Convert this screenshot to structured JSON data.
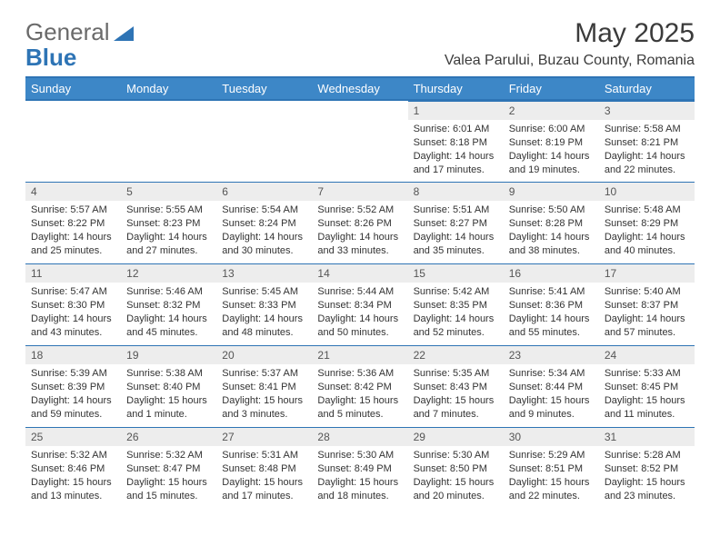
{
  "brand": {
    "part1": "General",
    "part2": "Blue"
  },
  "title": {
    "month": "May 2025",
    "location": "Valea Parului, Buzau County, Romania"
  },
  "colors": {
    "header_bg": "#3d87c7",
    "rule": "#2e74b5",
    "daynum_bg": "#ededed",
    "text": "#333333"
  },
  "weekdays": [
    "Sunday",
    "Monday",
    "Tuesday",
    "Wednesday",
    "Thursday",
    "Friday",
    "Saturday"
  ],
  "layout": {
    "first_weekday_index": 4,
    "days_in_month": 31
  },
  "days": {
    "1": {
      "sunrise": "6:01 AM",
      "sunset": "8:18 PM",
      "day_h": 14,
      "day_m": 17
    },
    "2": {
      "sunrise": "6:00 AM",
      "sunset": "8:19 PM",
      "day_h": 14,
      "day_m": 19
    },
    "3": {
      "sunrise": "5:58 AM",
      "sunset": "8:21 PM",
      "day_h": 14,
      "day_m": 22
    },
    "4": {
      "sunrise": "5:57 AM",
      "sunset": "8:22 PM",
      "day_h": 14,
      "day_m": 25
    },
    "5": {
      "sunrise": "5:55 AM",
      "sunset": "8:23 PM",
      "day_h": 14,
      "day_m": 27
    },
    "6": {
      "sunrise": "5:54 AM",
      "sunset": "8:24 PM",
      "day_h": 14,
      "day_m": 30
    },
    "7": {
      "sunrise": "5:52 AM",
      "sunset": "8:26 PM",
      "day_h": 14,
      "day_m": 33
    },
    "8": {
      "sunrise": "5:51 AM",
      "sunset": "8:27 PM",
      "day_h": 14,
      "day_m": 35
    },
    "9": {
      "sunrise": "5:50 AM",
      "sunset": "8:28 PM",
      "day_h": 14,
      "day_m": 38
    },
    "10": {
      "sunrise": "5:48 AM",
      "sunset": "8:29 PM",
      "day_h": 14,
      "day_m": 40
    },
    "11": {
      "sunrise": "5:47 AM",
      "sunset": "8:30 PM",
      "day_h": 14,
      "day_m": 43
    },
    "12": {
      "sunrise": "5:46 AM",
      "sunset": "8:32 PM",
      "day_h": 14,
      "day_m": 45
    },
    "13": {
      "sunrise": "5:45 AM",
      "sunset": "8:33 PM",
      "day_h": 14,
      "day_m": 48
    },
    "14": {
      "sunrise": "5:44 AM",
      "sunset": "8:34 PM",
      "day_h": 14,
      "day_m": 50
    },
    "15": {
      "sunrise": "5:42 AM",
      "sunset": "8:35 PM",
      "day_h": 14,
      "day_m": 52
    },
    "16": {
      "sunrise": "5:41 AM",
      "sunset": "8:36 PM",
      "day_h": 14,
      "day_m": 55
    },
    "17": {
      "sunrise": "5:40 AM",
      "sunset": "8:37 PM",
      "day_h": 14,
      "day_m": 57
    },
    "18": {
      "sunrise": "5:39 AM",
      "sunset": "8:39 PM",
      "day_h": 14,
      "day_m": 59
    },
    "19": {
      "sunrise": "5:38 AM",
      "sunset": "8:40 PM",
      "day_h": 15,
      "day_m": 1
    },
    "20": {
      "sunrise": "5:37 AM",
      "sunset": "8:41 PM",
      "day_h": 15,
      "day_m": 3
    },
    "21": {
      "sunrise": "5:36 AM",
      "sunset": "8:42 PM",
      "day_h": 15,
      "day_m": 5
    },
    "22": {
      "sunrise": "5:35 AM",
      "sunset": "8:43 PM",
      "day_h": 15,
      "day_m": 7
    },
    "23": {
      "sunrise": "5:34 AM",
      "sunset": "8:44 PM",
      "day_h": 15,
      "day_m": 9
    },
    "24": {
      "sunrise": "5:33 AM",
      "sunset": "8:45 PM",
      "day_h": 15,
      "day_m": 11
    },
    "25": {
      "sunrise": "5:32 AM",
      "sunset": "8:46 PM",
      "day_h": 15,
      "day_m": 13
    },
    "26": {
      "sunrise": "5:32 AM",
      "sunset": "8:47 PM",
      "day_h": 15,
      "day_m": 15
    },
    "27": {
      "sunrise": "5:31 AM",
      "sunset": "8:48 PM",
      "day_h": 15,
      "day_m": 17
    },
    "28": {
      "sunrise": "5:30 AM",
      "sunset": "8:49 PM",
      "day_h": 15,
      "day_m": 18
    },
    "29": {
      "sunrise": "5:30 AM",
      "sunset": "8:50 PM",
      "day_h": 15,
      "day_m": 20
    },
    "30": {
      "sunrise": "5:29 AM",
      "sunset": "8:51 PM",
      "day_h": 15,
      "day_m": 22
    },
    "31": {
      "sunrise": "5:28 AM",
      "sunset": "8:52 PM",
      "day_h": 15,
      "day_m": 23
    }
  },
  "labels": {
    "sunrise": "Sunrise:",
    "sunset": "Sunset:",
    "daylight": "Daylight:"
  }
}
